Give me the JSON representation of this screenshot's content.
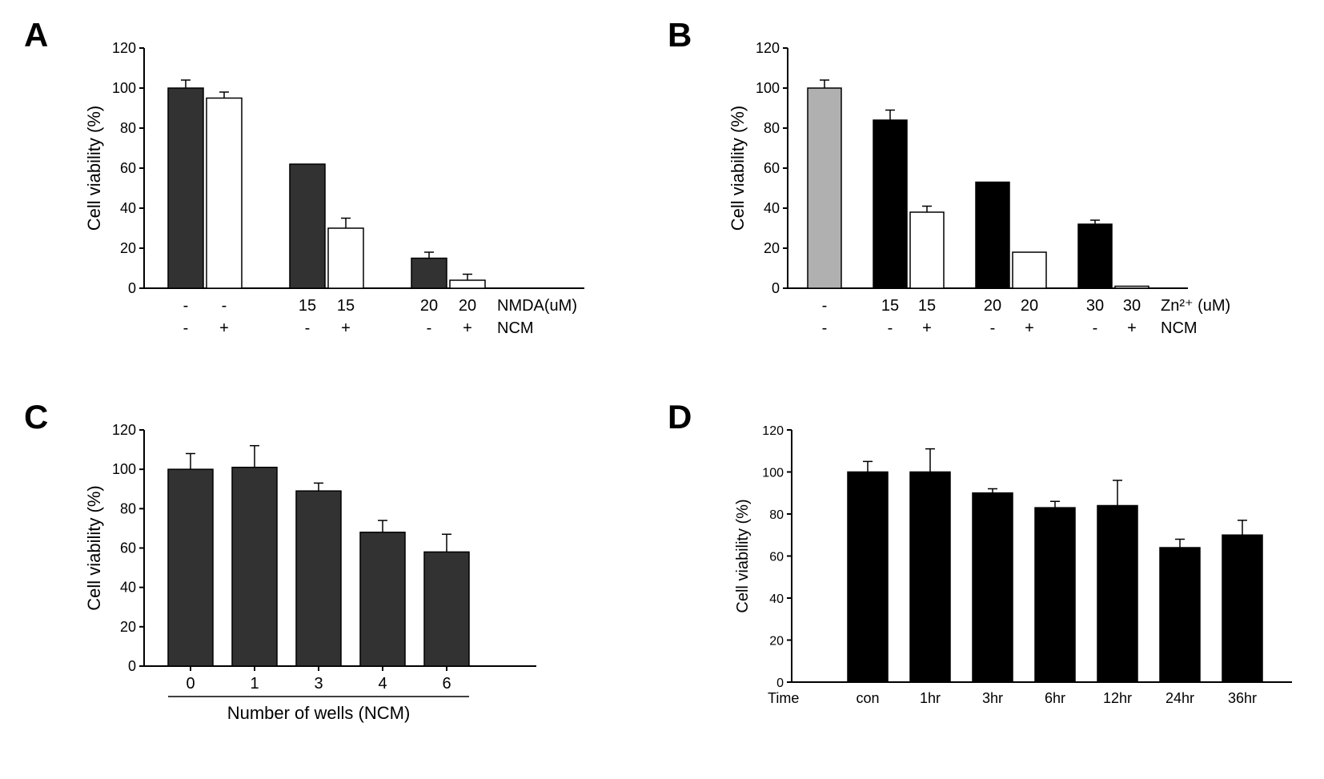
{
  "colors": {
    "black": "#000000",
    "dark": "#323232",
    "gray": "#b0b0b0",
    "white": "#ffffff",
    "axis": "#000000",
    "bg": "#ffffff"
  },
  "panels": {
    "A": {
      "label": "A",
      "ylabel": "Cell viability (%)",
      "ylim": [
        0,
        120
      ],
      "ytick_step": 20,
      "bars": [
        {
          "value": 100,
          "err": 4,
          "color": "#323232"
        },
        {
          "value": 95,
          "err": 3,
          "color": "#ffffff"
        },
        {
          "value": 62,
          "err": 0,
          "color": "#323232"
        },
        {
          "value": 30,
          "err": 5,
          "color": "#ffffff"
        },
        {
          "value": 15,
          "err": 3,
          "color": "#323232"
        },
        {
          "value": 4,
          "err": 3,
          "color": "#ffffff"
        }
      ],
      "group_gap_after": [
        1,
        3
      ],
      "xrows": [
        {
          "labels": [
            "-",
            "-",
            "15",
            "15",
            "20",
            "20"
          ],
          "suffix": "NMDA(uM)"
        },
        {
          "labels": [
            "-",
            "+",
            "-",
            "+",
            "-",
            "+"
          ],
          "suffix": "NCM"
        }
      ]
    },
    "B": {
      "label": "B",
      "ylabel": "Cell viability (%)",
      "ylim": [
        0,
        120
      ],
      "ytick_step": 20,
      "bars": [
        {
          "value": 100,
          "err": 4,
          "color": "#b0b0b0"
        },
        {
          "value": 84,
          "err": 5,
          "color": "#000000"
        },
        {
          "value": 38,
          "err": 3,
          "color": "#ffffff"
        },
        {
          "value": 53,
          "err": 0,
          "color": "#000000"
        },
        {
          "value": 18,
          "err": 0,
          "color": "#ffffff"
        },
        {
          "value": 32,
          "err": 2,
          "color": "#000000"
        },
        {
          "value": 1,
          "err": 0,
          "color": "#ffffff"
        }
      ],
      "group_gap_after": [
        0,
        2,
        4
      ],
      "xrows": [
        {
          "labels": [
            "-",
            "15",
            "15",
            "20",
            "20",
            "30",
            "30"
          ],
          "suffix": "Zn²⁺ (uM)"
        },
        {
          "labels": [
            "-",
            "-",
            "+",
            "-",
            "+",
            "-",
            "+"
          ],
          "suffix": "NCM"
        }
      ]
    },
    "C": {
      "label": "C",
      "ylabel": "Cell viability (%)",
      "ylim": [
        0,
        120
      ],
      "ytick_step": 20,
      "bars": [
        {
          "value": 100,
          "err": 8,
          "color": "#323232"
        },
        {
          "value": 101,
          "err": 11,
          "color": "#323232"
        },
        {
          "value": 89,
          "err": 4,
          "color": "#323232"
        },
        {
          "value": 68,
          "err": 6,
          "color": "#323232"
        },
        {
          "value": 58,
          "err": 9,
          "color": "#323232"
        }
      ],
      "xcats": [
        "0",
        "1",
        "3",
        "4",
        "6"
      ],
      "xlabel": "Number of wells (NCM)"
    },
    "D": {
      "label": "D",
      "ylabel": "Cell viability (%)",
      "ylim": [
        0,
        120
      ],
      "ytick_step": 20,
      "bars": [
        {
          "value": 100,
          "err": 5,
          "color": "#000000"
        },
        {
          "value": 100,
          "err": 11,
          "color": "#000000"
        },
        {
          "value": 90,
          "err": 2,
          "color": "#000000"
        },
        {
          "value": 83,
          "err": 3,
          "color": "#000000"
        },
        {
          "value": 84,
          "err": 12,
          "color": "#000000"
        },
        {
          "value": 64,
          "err": 4,
          "color": "#000000"
        },
        {
          "value": 70,
          "err": 7,
          "color": "#000000"
        }
      ],
      "xprefix": "Time",
      "xcats": [
        "con",
        "1hr",
        "3hr",
        "6hr",
        "12hr",
        "24hr",
        "36hr"
      ]
    }
  }
}
